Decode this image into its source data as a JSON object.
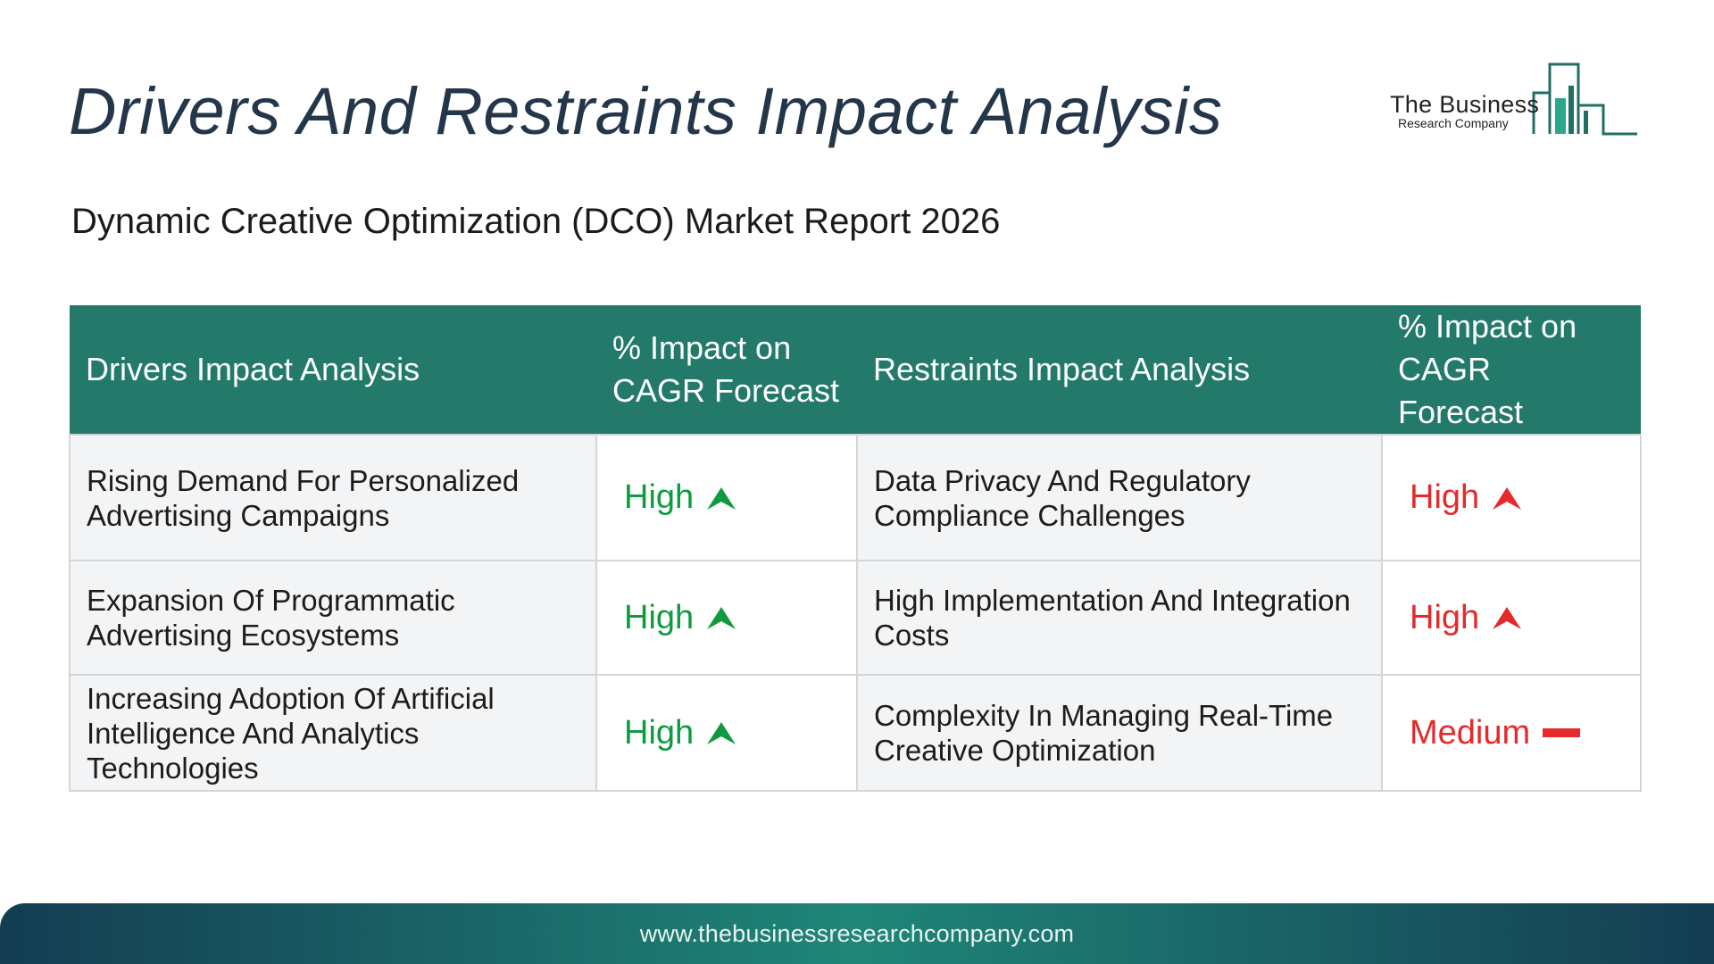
{
  "header": {
    "title": "Drivers And Restraints Impact Analysis",
    "subtitle": "Dynamic Creative Optimization (DCO) Market Report 2026"
  },
  "logo": {
    "line1": "The Business",
    "line2": "Research Company",
    "icon": "bar-chart-buildings-icon",
    "color": "#1f6f63"
  },
  "table": {
    "headers": {
      "drivers": "Drivers Impact Analysis",
      "drivers_impact": "% Impact on CAGR Forecast",
      "restraints": "Restraints Impact Analysis",
      "restraints_impact": "% Impact on CAGR Forecast"
    },
    "rows": [
      {
        "driver": "Rising Demand For Personalized Advertising Campaigns",
        "driver_impact": "High",
        "driver_icon": "arrow-up-icon",
        "restraint": "Data Privacy And Regulatory Compliance Challenges",
        "restraint_impact": "High",
        "restraint_icon": "arrow-up-icon"
      },
      {
        "driver": "Expansion Of Programmatic Advertising Ecosystems",
        "driver_impact": "High",
        "driver_icon": "arrow-up-icon",
        "restraint": "High Implementation And Integration Costs",
        "restraint_impact": "High",
        "restraint_icon": "arrow-up-icon"
      },
      {
        "driver": "Increasing Adoption Of Artificial Intelligence And Analytics Technologies",
        "driver_impact": "High",
        "driver_icon": "arrow-up-icon",
        "restraint": "Complexity In Managing Real-Time Creative Optimization",
        "restraint_impact": "Medium",
        "restraint_icon": "dash-icon"
      }
    ],
    "colors": {
      "header_bg": "#237a6a",
      "driver_rating": "#0e9b3f",
      "restraint_rating": "#e42a2a"
    }
  },
  "footer": {
    "url": "www.thebusinessresearchcompany.com"
  }
}
